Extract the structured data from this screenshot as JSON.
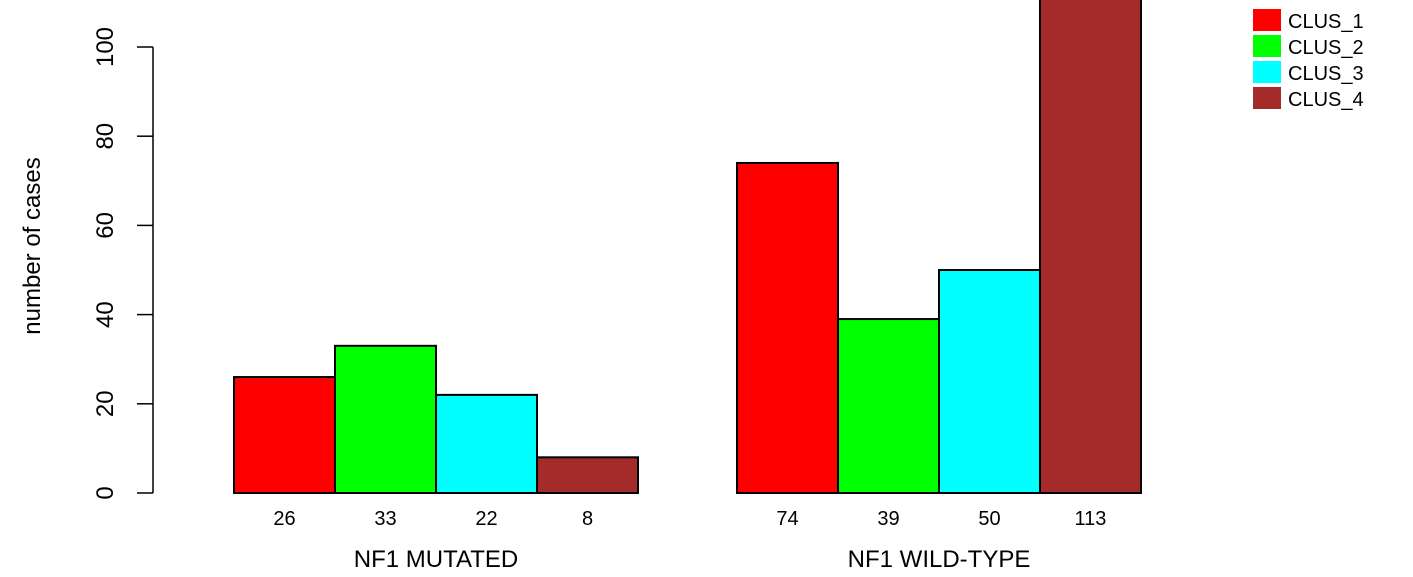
{
  "chart_data": {
    "type": "bar",
    "ylabel": "number of cases",
    "ylim": [
      0,
      113
    ],
    "yticks": [
      "0",
      "20",
      "40",
      "60",
      "80",
      "100"
    ],
    "ytick_values": [
      0,
      20,
      40,
      60,
      80,
      100
    ],
    "groups": [
      {
        "label": "NF1 MUTATED",
        "values": [
          26,
          33,
          22,
          8
        ],
        "value_labels": [
          "26",
          "33",
          "22",
          "8"
        ]
      },
      {
        "label": "NF1 WILD-TYPE",
        "values": [
          74,
          39,
          50,
          113
        ],
        "value_labels": [
          "74",
          "39",
          "50",
          "113"
        ]
      }
    ],
    "series": [
      {
        "name": "CLUS_1",
        "color": "#ff0000"
      },
      {
        "name": "CLUS_2",
        "color": "#00ff00"
      },
      {
        "name": "CLUS_3",
        "color": "#00ffff"
      },
      {
        "name": "CLUS_4",
        "color": "#a52a2a"
      }
    ],
    "legend_position": "top-right",
    "grid": false
  }
}
